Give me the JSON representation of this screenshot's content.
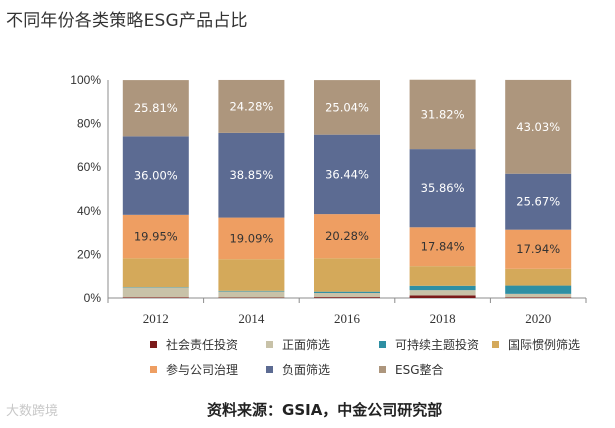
{
  "title": "不同年份各类策略ESG产品占比",
  "source": "资料来源：GSIA，中金公司研究部",
  "watermark": "大数跨境",
  "chart_data": {
    "type": "bar",
    "stacked": true,
    "categories": [
      "2012",
      "2014",
      "2016",
      "2018",
      "2020"
    ],
    "ylim": [
      0,
      100
    ],
    "yticks": [
      "0%",
      "20%",
      "40%",
      "60%",
      "80%",
      "100%"
    ],
    "legend_position": "bottom",
    "series": [
      {
        "name": "社会责任投资",
        "color": "#7b1a1a",
        "values": [
          0.3,
          0.2,
          0.4,
          1.2,
          0.3
        ],
        "labels": [
          "",
          "",
          "",
          "",
          ""
        ]
      },
      {
        "name": "正面筛选",
        "color": "#c8c2a8",
        "values": [
          4.5,
          2.8,
          1.9,
          2.4,
          1.6
        ],
        "labels": [
          "",
          "",
          "",
          "",
          ""
        ]
      },
      {
        "name": "可持续主题投资",
        "color": "#2e8fa3",
        "values": [
          0.2,
          0.3,
          0.6,
          2.0,
          3.8
        ],
        "labels": [
          "",
          "",
          "",
          "",
          ""
        ]
      },
      {
        "name": "国际惯例筛选",
        "color": "#d4a95a",
        "values": [
          13.2,
          14.5,
          15.3,
          9.0,
          7.7
        ],
        "labels": [
          "",
          "",
          "",
          "",
          ""
        ]
      },
      {
        "name": "参与公司治理",
        "color": "#ee9e62",
        "values": [
          19.95,
          19.09,
          20.28,
          17.84,
          17.94
        ],
        "labels": [
          "19.95%",
          "19.09%",
          "20.28%",
          "17.84%",
          "17.94%"
        ]
      },
      {
        "name": "负面筛选",
        "color": "#5c6b92",
        "values": [
          36.0,
          38.85,
          36.44,
          35.86,
          25.67
        ],
        "labels": [
          "36.00%",
          "38.85%",
          "36.44%",
          "35.86%",
          "25.67%"
        ]
      },
      {
        "name": "ESG整合",
        "color": "#ad967d",
        "values": [
          25.81,
          24.28,
          25.04,
          31.82,
          43.03
        ],
        "labels": [
          "25.81%",
          "24.28%",
          "25.04%",
          "31.82%",
          "43.03%"
        ]
      }
    ]
  }
}
